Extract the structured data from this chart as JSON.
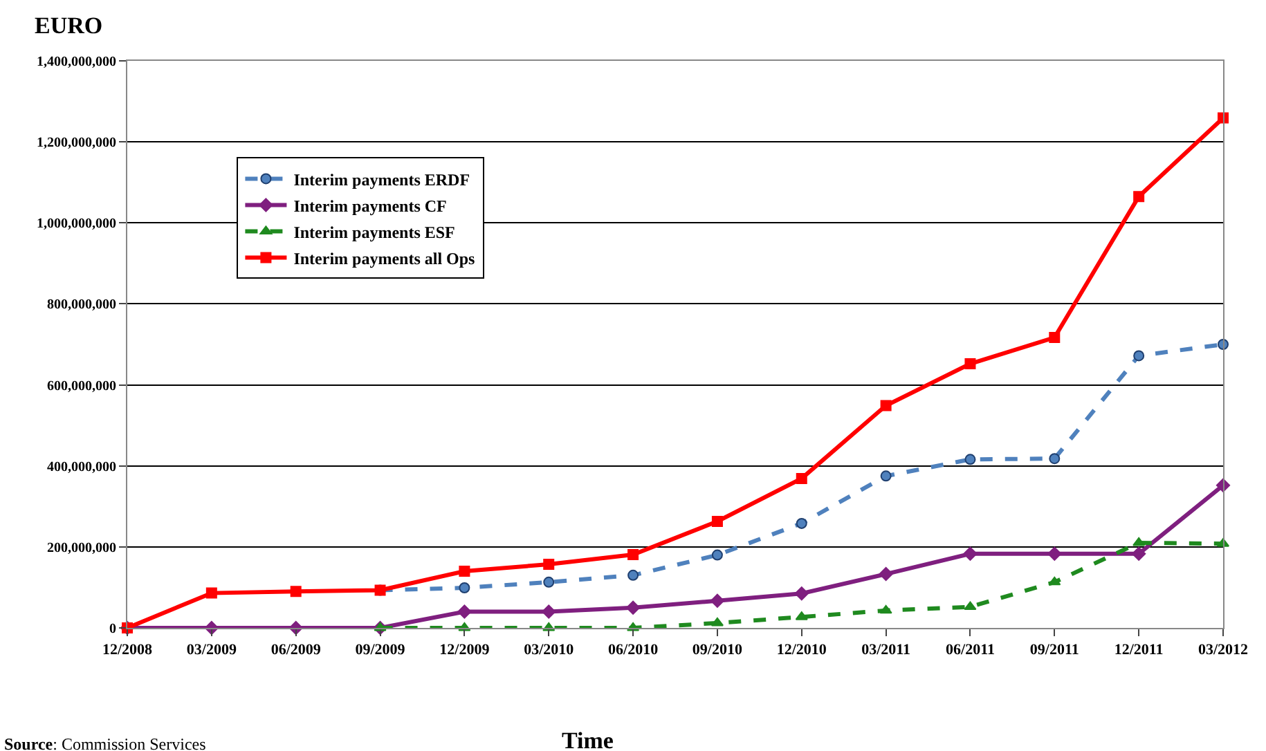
{
  "chart_data": {
    "type": "line",
    "ylabel": "EURO",
    "xlabel": "Time",
    "categories": [
      "12/2008",
      "03/2009",
      "06/2009",
      "09/2009",
      "12/2009",
      "03/2010",
      "06/2010",
      "09/2010",
      "12/2010",
      "03/2011",
      "06/2011",
      "09/2011",
      "12/2011",
      "03/2012"
    ],
    "series": [
      {
        "name": "Interim payments ERDF",
        "color": "#4f81bd",
        "line_style": "dashed",
        "marker": "circle",
        "values": [
          null,
          null,
          null,
          93000000,
          99000000,
          113000000,
          130000000,
          180000000,
          258000000,
          375000000,
          416000000,
          418000000,
          672000000,
          700000000
        ]
      },
      {
        "name": "Interim payments CF",
        "color": "#7f1f7f",
        "line_style": "solid",
        "marker": "diamond",
        "values": [
          0,
          0,
          0,
          0,
          40000000,
          40000000,
          50000000,
          67000000,
          85000000,
          133000000,
          183000000,
          183000000,
          183000000,
          352000000
        ]
      },
      {
        "name": "Interim payments ESF",
        "color": "#1f8a1f",
        "line_style": "dashed",
        "marker": "triangle",
        "values": [
          null,
          null,
          null,
          0,
          0,
          0,
          0,
          12000000,
          27000000,
          43000000,
          52000000,
          113000000,
          210000000,
          208000000
        ]
      },
      {
        "name": "Interim payments all Ops",
        "color": "#ff0000",
        "line_style": "solid",
        "marker": "square",
        "values": [
          0,
          86000000,
          90000000,
          93000000,
          140000000,
          157000000,
          181000000,
          263000000,
          369000000,
          549000000,
          652000000,
          717000000,
          1065000000,
          1259000000
        ]
      }
    ],
    "ylim": [
      0,
      1400000000
    ],
    "yticks": [
      {
        "value": 0,
        "label": "0"
      },
      {
        "value": 200000000,
        "label": "200,000,000"
      },
      {
        "value": 400000000,
        "label": "400,000,000"
      },
      {
        "value": 600000000,
        "label": "600,000,000"
      },
      {
        "value": 800000000,
        "label": "800,000,000"
      },
      {
        "value": 1000000000,
        "label": "1,000,000,000"
      },
      {
        "value": 1200000000,
        "label": "1,200,000,000"
      },
      {
        "value": 1400000000,
        "label": "1,400,000,000"
      }
    ],
    "grid": "y",
    "legend": "top left",
    "annotations": [
      "Source: Commission Services"
    ]
  }
}
